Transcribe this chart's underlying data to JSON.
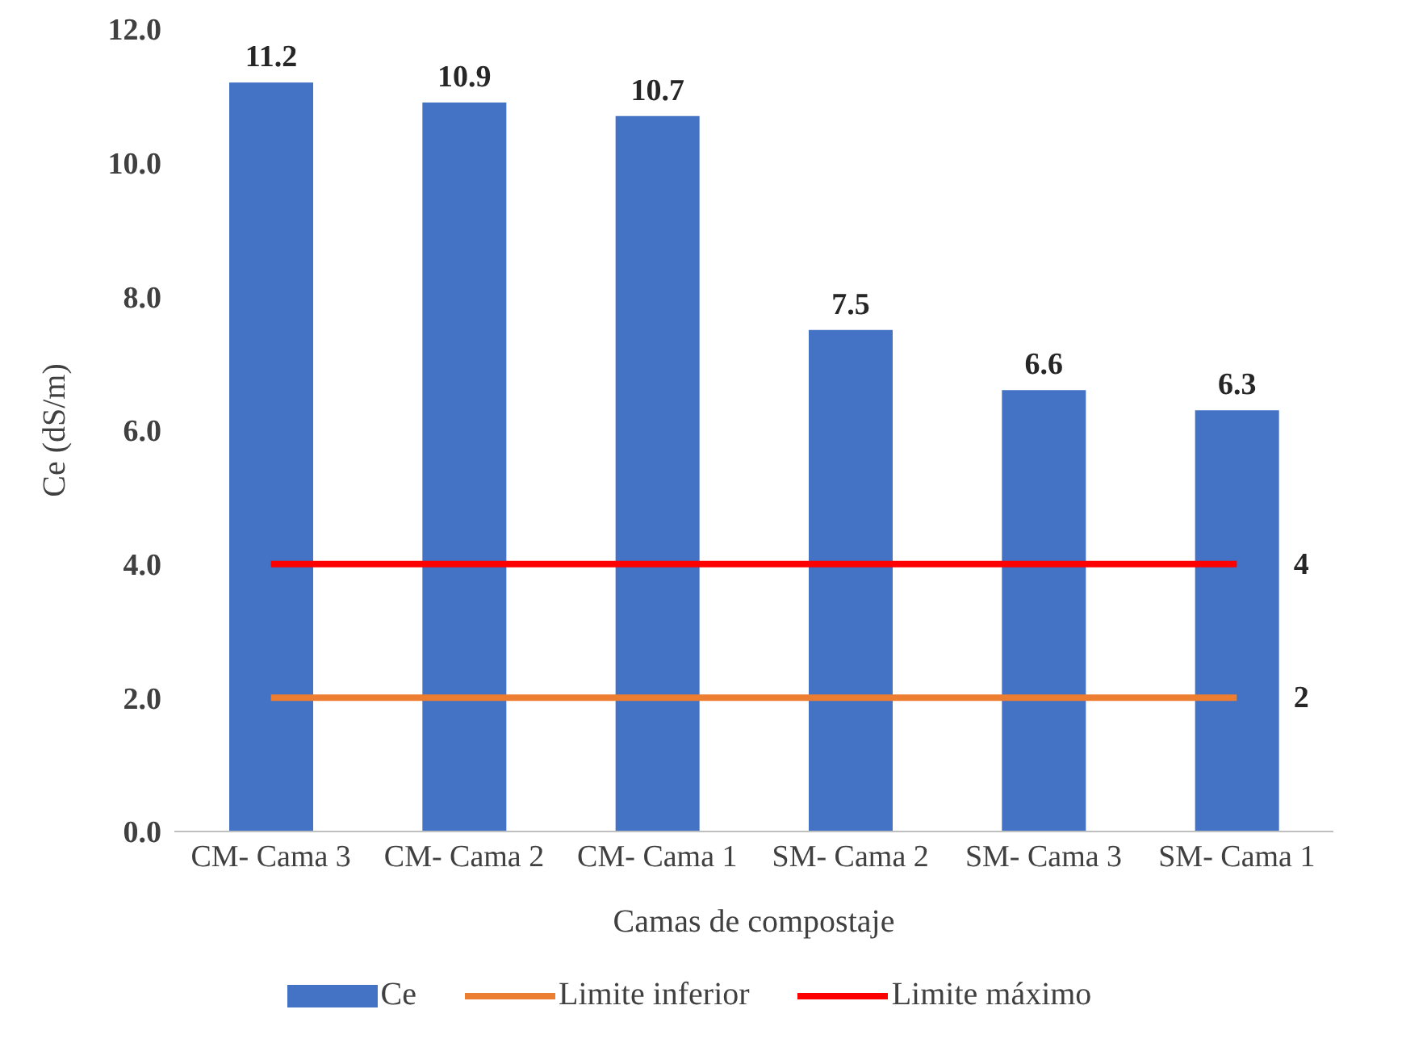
{
  "chart_data": {
    "type": "bar",
    "xlabel": "Camas de compostaje",
    "ylabel": "Ce (dS/m)",
    "categories": [
      "CM-  Cama 3",
      "CM- Cama 2",
      "CM- Cama 1",
      "SM- Cama 2",
      "SM- Cama 3",
      "SM- Cama 1"
    ],
    "series": [
      {
        "name": "Ce",
        "color": "#4472c4",
        "values": [
          11.2,
          10.9,
          10.7,
          7.5,
          6.6,
          6.3
        ],
        "value_labels": [
          "11.2",
          "10.9",
          "10.7",
          "7.5",
          "6.6",
          "6.3"
        ]
      },
      {
        "name": "Limite inferior",
        "type": "line",
        "color": "#ed7d31",
        "values": [
          2,
          2,
          2,
          2,
          2,
          2
        ],
        "value_labels": [
          null,
          null,
          null,
          null,
          null,
          "2"
        ]
      },
      {
        "name": "Limite máximo",
        "type": "line",
        "color": "#ff0000",
        "values": [
          4,
          4,
          4,
          4,
          4,
          4
        ],
        "value_labels": [
          null,
          null,
          null,
          null,
          null,
          "4"
        ]
      }
    ],
    "ylim": [
      0,
      12
    ],
    "yticks": [
      {
        "value": 0,
        "label": "0.0"
      },
      {
        "value": 2,
        "label": "2.0"
      },
      {
        "value": 4,
        "label": "4.0"
      },
      {
        "value": 6,
        "label": "6.0"
      },
      {
        "value": 8,
        "label": "8.0"
      },
      {
        "value": 10,
        "label": "10.0"
      },
      {
        "value": 12,
        "label": "12.0"
      }
    ],
    "grid": false,
    "legend": "bottom",
    "marker": "none",
    "line_style": "solid"
  }
}
